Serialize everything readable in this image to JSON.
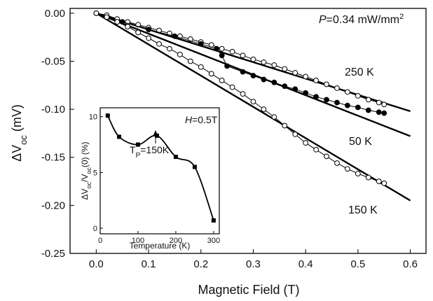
{
  "chart_data": [
    {
      "type": "line",
      "title": "",
      "xlabel": "Magnetic Field (T)",
      "ylabel": "ΔV_oc (mV)",
      "xlim": [
        -0.05,
        0.63
      ],
      "ylim": [
        -0.25,
        0.005
      ],
      "x_ticks": [
        "0.0",
        "0.1",
        "0.2",
        "0.3",
        "0.4",
        "0.5",
        "0.6"
      ],
      "y_ticks": [
        "0.00",
        "-0.05",
        "-0.10",
        "-0.15",
        "-0.20",
        "-0.25"
      ],
      "annotations": [
        "P=0.34 mW/mm²",
        "250 K",
        "50 K",
        "150 K"
      ],
      "series": [
        {
          "name": "250 K",
          "marker": "open-circle",
          "x": [
            0.0,
            0.02,
            0.04,
            0.06,
            0.08,
            0.1,
            0.12,
            0.14,
            0.16,
            0.18,
            0.2,
            0.22,
            0.24,
            0.26,
            0.28,
            0.3,
            0.32,
            0.34,
            0.36,
            0.38,
            0.4,
            0.42,
            0.44,
            0.46,
            0.48,
            0.5,
            0.52,
            0.54,
            0.55
          ],
          "y": [
            0.0,
            -0.002,
            -0.006,
            -0.009,
            -0.012,
            -0.015,
            -0.018,
            -0.021,
            -0.024,
            -0.027,
            -0.03,
            -0.033,
            -0.037,
            -0.04,
            -0.044,
            -0.048,
            -0.051,
            -0.054,
            -0.058,
            -0.062,
            -0.066,
            -0.07,
            -0.074,
            -0.078,
            -0.082,
            -0.086,
            -0.09,
            -0.093,
            -0.095
          ]
        },
        {
          "name": "50 K",
          "marker": "filled-circle",
          "x": [
            0.0,
            0.05,
            0.1,
            0.15,
            0.2,
            0.23,
            0.24,
            0.25,
            0.28,
            0.3,
            0.32,
            0.34,
            0.36,
            0.38,
            0.4,
            0.42,
            0.44,
            0.46,
            0.48,
            0.5,
            0.52,
            0.54,
            0.55
          ],
          "y": [
            0.0,
            -0.009,
            -0.017,
            -0.024,
            -0.032,
            -0.037,
            -0.044,
            -0.055,
            -0.061,
            -0.065,
            -0.069,
            -0.072,
            -0.076,
            -0.079,
            -0.083,
            -0.087,
            -0.09,
            -0.093,
            -0.096,
            -0.098,
            -0.101,
            -0.103,
            -0.104
          ]
        },
        {
          "name": "150 K",
          "marker": "open-circle",
          "x": [
            0.0,
            0.02,
            0.04,
            0.06,
            0.08,
            0.1,
            0.12,
            0.14,
            0.16,
            0.18,
            0.2,
            0.22,
            0.24,
            0.26,
            0.28,
            0.3,
            0.32,
            0.34,
            0.36,
            0.38,
            0.4,
            0.42,
            0.44,
            0.46,
            0.48,
            0.5,
            0.52,
            0.54,
            0.55
          ],
          "y": [
            0.0,
            -0.004,
            -0.009,
            -0.014,
            -0.02,
            -0.026,
            -0.032,
            -0.037,
            -0.043,
            -0.05,
            -0.056,
            -0.063,
            -0.07,
            -0.077,
            -0.084,
            -0.092,
            -0.1,
            -0.108,
            -0.117,
            -0.126,
            -0.135,
            -0.142,
            -0.149,
            -0.156,
            -0.162,
            -0.167,
            -0.171,
            -0.175,
            -0.177
          ]
        }
      ],
      "fits": [
        {
          "name": "250 K fit",
          "x": [
            0.0,
            0.6
          ],
          "y": [
            0.0,
            -0.102
          ]
        },
        {
          "name": "50 K fit",
          "x": [
            0.0,
            0.6
          ],
          "y": [
            0.0,
            -0.128
          ]
        },
        {
          "name": "150 K fit",
          "x": [
            0.0,
            0.6
          ],
          "y": [
            0.0,
            -0.195
          ]
        }
      ]
    },
    {
      "type": "line",
      "title": "",
      "xlabel": "Temperature (K)",
      "ylabel": "ΔV_oc/V_oc(0) (%)",
      "xlim": [
        0,
        315
      ],
      "ylim": [
        -0.5,
        10.8
      ],
      "x_ticks": [
        "0",
        "100",
        "200",
        "300"
      ],
      "y_ticks": [
        "0",
        "5",
        "10"
      ],
      "annotations": [
        "H=0.5T",
        "T_P=150K"
      ],
      "series": [
        {
          "name": "",
          "marker": "filled-square",
          "x": [
            20,
            50,
            100,
            150,
            200,
            250,
            300
          ],
          "y": [
            10.1,
            8.2,
            7.5,
            8.3,
            6.4,
            5.5,
            0.7
          ]
        }
      ]
    }
  ]
}
